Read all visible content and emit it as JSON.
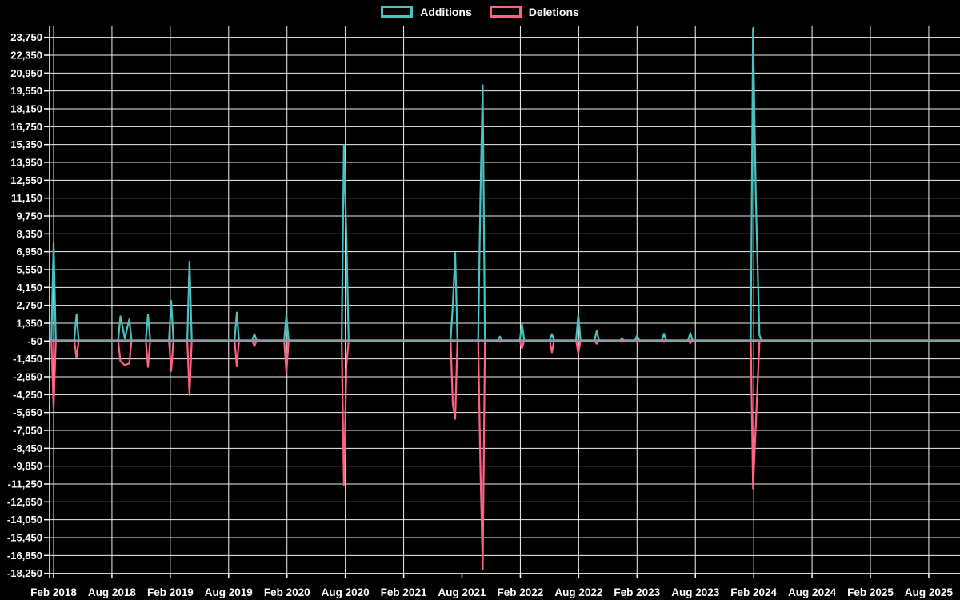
{
  "legend": {
    "items": [
      {
        "label": "Additions",
        "color": "#4BC0C0"
      },
      {
        "label": "Deletions",
        "color": "#FF6384"
      }
    ]
  },
  "chart_data": {
    "type": "line",
    "title": "",
    "xlabel": "",
    "ylabel": "",
    "background_color": "#000000",
    "grid": true,
    "grid_color": "#f2f2f2",
    "zero_baseline_color": "#7f9ca6",
    "legend_position": "top-center",
    "x_ticks": [
      "Feb 2018",
      "Aug 2018",
      "Feb 2019",
      "Aug 2019",
      "Feb 2020",
      "Aug 2020",
      "Feb 2021",
      "Aug 2021",
      "Feb 2022",
      "Aug 2022",
      "Feb 2023",
      "Aug 2023",
      "Feb 2024",
      "Aug 2024",
      "Feb 2025",
      "Aug 2025"
    ],
    "x_tick_interval_months": 6,
    "y_axis": {
      "min": -18250,
      "max": 23750,
      "step": 1400,
      "baseline_value": -50
    },
    "series": [
      {
        "name": "Additions",
        "color": "#4BC0C0",
        "value_key": "additions"
      },
      {
        "name": "Deletions",
        "color": "#FF6384",
        "value_key": "deletions"
      }
    ],
    "spikes_note": "m = months after Feb 2018 (x position); values estimated from gridlines",
    "spikes": [
      {
        "m": 0.0,
        "date": "2018-02",
        "additions": 7650,
        "deletions": -5300
      },
      {
        "m": 2.35,
        "date": "2018-04",
        "additions": 2050,
        "deletions": -1350
      },
      {
        "m": 6.87,
        "date": "2018-09",
        "additions": 1890,
        "deletions": -1650
      },
      {
        "m": 7.32,
        "date": "2018-09",
        "additions": 150,
        "deletions": -1930
      },
      {
        "m": 7.78,
        "date": "2018-10",
        "additions": 1660,
        "deletions": -1800
      },
      {
        "m": 9.71,
        "date": "2018-12",
        "additions": 2040,
        "deletions": -2080
      },
      {
        "m": 12.09,
        "date": "2019-02",
        "additions": 3090,
        "deletions": -2390
      },
      {
        "m": 13.98,
        "date": "2019-04",
        "additions": 6180,
        "deletions": -4280
      },
      {
        "m": 18.84,
        "date": "2019-09",
        "additions": 2190,
        "deletions": -2030
      },
      {
        "m": 20.65,
        "date": "2019-11",
        "additions": 500,
        "deletions": -450
      },
      {
        "m": 23.94,
        "date": "2020-02",
        "additions": 2000,
        "deletions": -2550
      },
      {
        "m": 29.86,
        "date": "2020-08",
        "additions": 15300,
        "deletions": -11330
      },
      {
        "m": 30.11,
        "date": "2020-08",
        "additions": 8160,
        "deletions": -2000
      },
      {
        "m": 41.05,
        "date": "2021-07",
        "additions": 2750,
        "deletions": -5000
      },
      {
        "m": 41.3,
        "date": "2021-07",
        "additions": 6850,
        "deletions": -6150
      },
      {
        "m": 43.89,
        "date": "2021-10",
        "additions": 11150,
        "deletions": -9900
      },
      {
        "m": 44.13,
        "date": "2021-10",
        "additions": 20000,
        "deletions": -17900
      },
      {
        "m": 45.9,
        "date": "2021-12",
        "additions": 300,
        "deletions": -120
      },
      {
        "m": 48.17,
        "date": "2022-02",
        "additions": 1270,
        "deletions": -610
      },
      {
        "m": 51.25,
        "date": "2022-05",
        "additions": 500,
        "deletions": -930
      },
      {
        "m": 53.96,
        "date": "2022-08",
        "additions": 2040,
        "deletions": -1030
      },
      {
        "m": 55.85,
        "date": "2022-10",
        "additions": 750,
        "deletions": -260
      },
      {
        "m": 58.45,
        "date": "2022-12",
        "additions": 130,
        "deletions": -130
      },
      {
        "m": 60.01,
        "date": "2023-02",
        "additions": 380,
        "deletions": -150
      },
      {
        "m": 62.77,
        "date": "2023-05",
        "additions": 530,
        "deletions": -110
      },
      {
        "m": 65.48,
        "date": "2023-07",
        "additions": 580,
        "deletions": -220
      },
      {
        "m": 71.93,
        "date": "2024-02",
        "additions": 24450,
        "deletions": -11600
      },
      {
        "m": 72.22,
        "date": "2024-02",
        "additions": 11150,
        "deletions": -6550
      },
      {
        "m": 72.59,
        "date": "2024-03",
        "additions": 430,
        "deletions": -150
      }
    ]
  }
}
